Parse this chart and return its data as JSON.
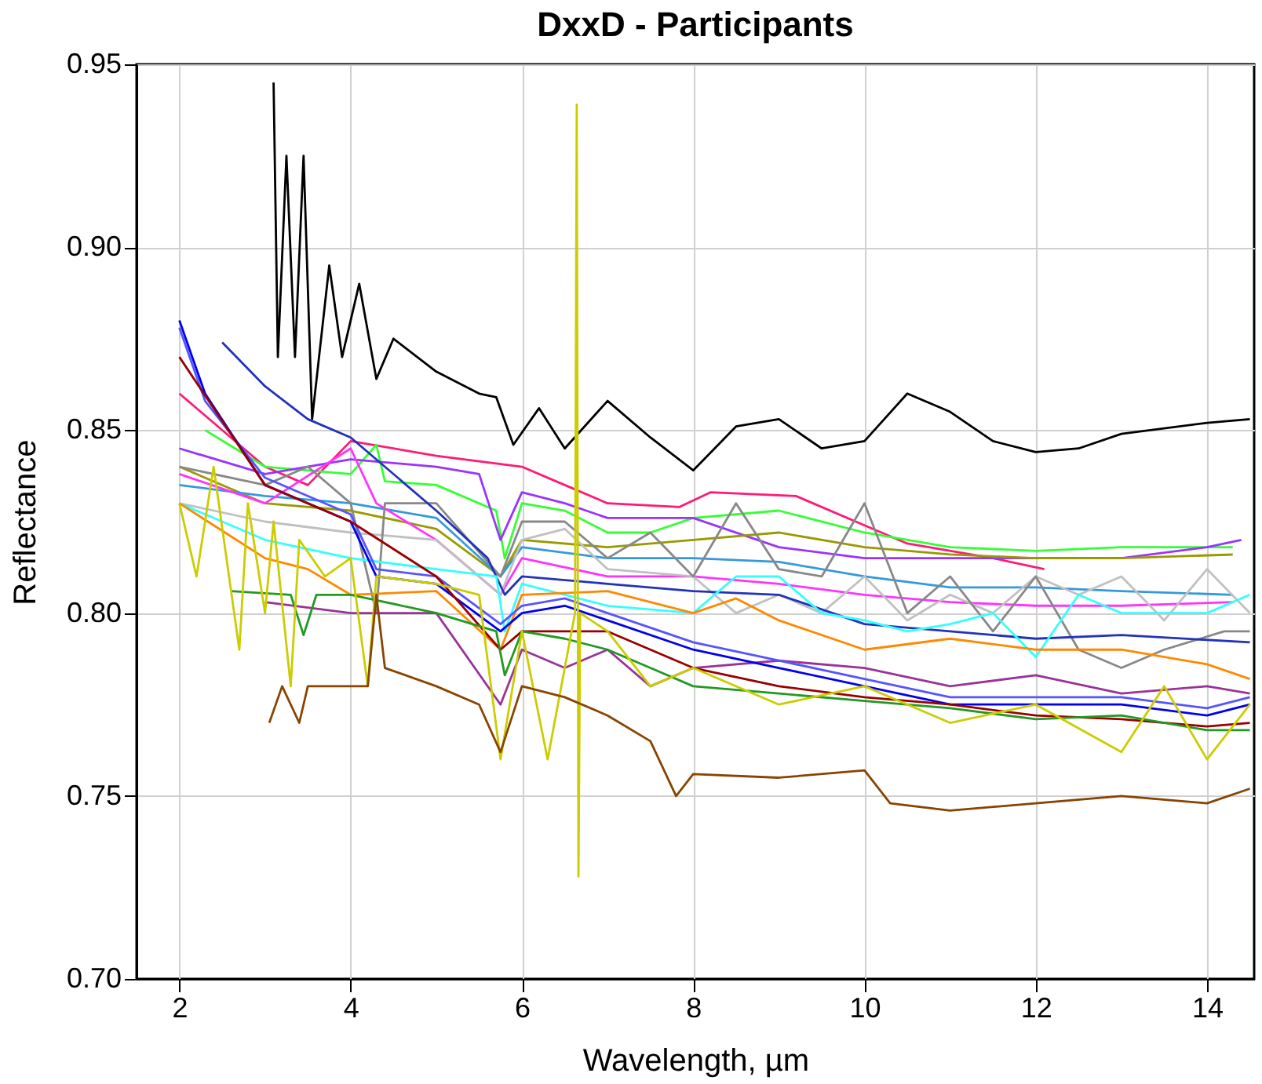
{
  "chart_data": {
    "type": "line",
    "title": "DxxD - Participants",
    "xlabel": "Wavelength, µm",
    "ylabel": "Reflectance",
    "xlim": [
      1.5,
      14.55
    ],
    "ylim": [
      0.7,
      0.95
    ],
    "xticks": [
      2,
      4,
      6,
      8,
      10,
      12,
      14
    ],
    "yticks": [
      {
        "value": 0.7,
        "label": "0.70"
      },
      0.75,
      {
        "value": 0.8,
        "label": "0.80"
      },
      0.85,
      {
        "value": 0.9,
        "label": "0.90"
      },
      0.95
    ],
    "grid": true,
    "legend": false,
    "line_style": "solid",
    "marker": "none",
    "series": [
      {
        "color": "#000000",
        "x": [
          3.1,
          3.15,
          3.25,
          3.35,
          3.45,
          3.55,
          3.75,
          3.9,
          4.1,
          4.3,
          4.5,
          5.0,
          5.5,
          5.7,
          5.9,
          6.2,
          6.5,
          7.0,
          7.5,
          8.0,
          8.5,
          9.0,
          9.5,
          10.0,
          10.5,
          11.0,
          11.5,
          12.0,
          12.5,
          13.0,
          14.0,
          14.5
        ],
        "values": [
          0.945,
          0.87,
          0.925,
          0.87,
          0.925,
          0.853,
          0.895,
          0.87,
          0.89,
          0.864,
          0.875,
          0.866,
          0.86,
          0.859,
          0.846,
          0.856,
          0.845,
          0.858,
          0.848,
          0.839,
          0.851,
          0.853,
          0.845,
          0.847,
          0.86,
          0.855,
          0.847,
          0.844,
          0.845,
          0.849,
          0.852,
          0.853
        ]
      },
      {
        "color": "#ff1a75",
        "x": [
          2.0,
          3.0,
          3.5,
          4.0,
          5.0,
          6.0,
          6.5,
          7.0,
          7.84,
          8.2,
          9.2,
          10.0,
          10.5,
          11.5,
          12.1
        ],
        "values": [
          0.86,
          0.84,
          0.835,
          0.847,
          0.843,
          0.84,
          0.835,
          0.83,
          0.829,
          0.833,
          0.832,
          0.824,
          0.819,
          0.815,
          0.812
        ]
      },
      {
        "color": "#33ff33",
        "x": [
          2.3,
          3.0,
          4.0,
          4.3,
          4.4,
          5.0,
          5.7,
          5.8,
          6.0,
          6.5,
          7.0,
          7.5,
          8.0,
          9.0,
          10.0,
          11.0,
          12.0,
          13.0,
          14.3
        ],
        "values": [
          0.85,
          0.84,
          0.838,
          0.846,
          0.836,
          0.835,
          0.828,
          0.815,
          0.83,
          0.828,
          0.822,
          0.822,
          0.826,
          0.828,
          0.822,
          0.818,
          0.817,
          0.818,
          0.818
        ]
      },
      {
        "color": "#9933ff",
        "x": [
          2.0,
          3.0,
          4.0,
          5.0,
          5.5,
          5.75,
          6.0,
          6.5,
          7.0,
          8.0,
          9.0,
          10.0,
          11.0,
          12.0,
          13.0,
          14.0,
          14.4
        ],
        "values": [
          0.845,
          0.838,
          0.842,
          0.84,
          0.838,
          0.82,
          0.833,
          0.83,
          0.826,
          0.826,
          0.818,
          0.815,
          0.815,
          0.815,
          0.815,
          0.818,
          0.82
        ]
      },
      {
        "color": "#999900",
        "x": [
          2.0,
          3.0,
          4.0,
          5.0,
          5.75,
          6.0,
          7.0,
          8.0,
          9.0,
          10.0,
          11.0,
          12.0,
          13.0,
          14.3
        ],
        "values": [
          0.84,
          0.83,
          0.828,
          0.823,
          0.81,
          0.82,
          0.818,
          0.82,
          0.822,
          0.818,
          0.816,
          0.815,
          0.815,
          0.816
        ]
      },
      {
        "color": "#3399dd",
        "x": [
          2.0,
          3.0,
          4.0,
          5.0,
          5.75,
          6.0,
          7.0,
          8.0,
          9.0,
          10.0,
          11.0,
          12.0,
          13.0,
          14.3
        ],
        "values": [
          0.835,
          0.832,
          0.83,
          0.826,
          0.81,
          0.818,
          0.815,
          0.815,
          0.814,
          0.81,
          0.807,
          0.807,
          0.806,
          0.805
        ]
      },
      {
        "color": "#ff33ff",
        "x": [
          2.0,
          3.0,
          4.0,
          4.3,
          5.0,
          5.75,
          6.0,
          7.0,
          8.0,
          9.0,
          10.0,
          11.0,
          12.0,
          13.0,
          14.3
        ],
        "values": [
          0.838,
          0.83,
          0.845,
          0.83,
          0.82,
          0.805,
          0.815,
          0.81,
          0.81,
          0.808,
          0.805,
          0.803,
          0.802,
          0.802,
          0.803
        ]
      },
      {
        "color": "#c0c0c0",
        "x": [
          2.0,
          3.0,
          4.0,
          5.0,
          5.75,
          6.0,
          6.5,
          7.0,
          8.0,
          8.5,
          9.0,
          9.5,
          10.0,
          10.5,
          11.0,
          11.5,
          12.0,
          12.5,
          13.0,
          13.5,
          14.0,
          14.5
        ],
        "values": [
          0.83,
          0.825,
          0.822,
          0.82,
          0.805,
          0.82,
          0.823,
          0.812,
          0.81,
          0.8,
          0.805,
          0.8,
          0.81,
          0.798,
          0.805,
          0.8,
          0.81,
          0.805,
          0.81,
          0.798,
          0.812,
          0.8
        ]
      },
      {
        "color": "#888888",
        "x": [
          2.0,
          3.0,
          3.5,
          4.0,
          4.3,
          4.4,
          5.0,
          5.75,
          6.0,
          6.5,
          7.0,
          7.5,
          8.0,
          8.5,
          9.0,
          9.5,
          10.0,
          10.5,
          11.0,
          11.5,
          12.0,
          12.5,
          13.0,
          13.5,
          14.2,
          14.5
        ],
        "values": [
          0.84,
          0.835,
          0.84,
          0.83,
          0.8,
          0.83,
          0.83,
          0.81,
          0.825,
          0.825,
          0.815,
          0.822,
          0.81,
          0.83,
          0.812,
          0.81,
          0.83,
          0.8,
          0.81,
          0.795,
          0.81,
          0.79,
          0.785,
          0.79,
          0.795,
          0.795
        ]
      },
      {
        "color": "#2233bb",
        "x": [
          2.5,
          3.0,
          3.5,
          4.0,
          5.0,
          5.6,
          5.8,
          6.0,
          7.0,
          8.0,
          9.0,
          10.0,
          11.0,
          12.0,
          13.0,
          14.5
        ],
        "values": [
          0.874,
          0.862,
          0.853,
          0.848,
          0.828,
          0.815,
          0.805,
          0.81,
          0.808,
          0.806,
          0.805,
          0.797,
          0.795,
          0.793,
          0.794,
          0.792
        ]
      },
      {
        "color": "#33ffff",
        "x": [
          2.0,
          3.0,
          4.0,
          5.0,
          5.7,
          5.8,
          6.0,
          7.0,
          8.0,
          8.5,
          9.0,
          9.5,
          10.0,
          10.5,
          11.0,
          11.5,
          12.0,
          12.5,
          13.0,
          14.0,
          14.5
        ],
        "values": [
          0.83,
          0.82,
          0.815,
          0.812,
          0.81,
          0.795,
          0.808,
          0.802,
          0.8,
          0.81,
          0.81,
          0.8,
          0.798,
          0.795,
          0.797,
          0.8,
          0.788,
          0.805,
          0.8,
          0.8,
          0.805
        ]
      },
      {
        "color": "#ff8800",
        "x": [
          2.0,
          3.0,
          3.5,
          4.0,
          5.0,
          5.75,
          6.0,
          7.0,
          8.0,
          8.5,
          9.0,
          10.0,
          11.0,
          12.0,
          13.0,
          14.0,
          14.5
        ],
        "values": [
          0.83,
          0.815,
          0.812,
          0.805,
          0.806,
          0.79,
          0.805,
          0.806,
          0.8,
          0.804,
          0.798,
          0.79,
          0.793,
          0.79,
          0.79,
          0.786,
          0.782
        ]
      },
      {
        "color": "#993399",
        "x": [
          3.0,
          4.0,
          5.0,
          5.75,
          6.0,
          6.5,
          7.0,
          7.5,
          8.0,
          9.0,
          10.0,
          11.0,
          12.0,
          13.0,
          14.0,
          14.5
        ],
        "values": [
          0.803,
          0.8,
          0.8,
          0.775,
          0.79,
          0.785,
          0.79,
          0.78,
          0.785,
          0.787,
          0.785,
          0.78,
          0.783,
          0.778,
          0.78,
          0.778
        ]
      },
      {
        "color": "#5555ff",
        "x": [
          2.0,
          2.3,
          3.0,
          4.0,
          4.3,
          5.0,
          5.75,
          6.0,
          6.5,
          7.0,
          8.0,
          9.0,
          10.0,
          11.0,
          12.0,
          13.0,
          14.0,
          14.5
        ],
        "values": [
          0.878,
          0.858,
          0.837,
          0.827,
          0.812,
          0.81,
          0.797,
          0.802,
          0.804,
          0.8,
          0.792,
          0.787,
          0.782,
          0.777,
          0.777,
          0.777,
          0.774,
          0.777
        ]
      },
      {
        "color": "#0000ee",
        "x": [
          2.0,
          2.3,
          3.0,
          4.0,
          4.3,
          5.0,
          5.75,
          6.0,
          6.5,
          7.0,
          8.0,
          9.0,
          10.0,
          11.0,
          12.0,
          13.0,
          14.0,
          14.5
        ],
        "values": [
          0.88,
          0.86,
          0.835,
          0.825,
          0.81,
          0.808,
          0.795,
          0.8,
          0.802,
          0.798,
          0.79,
          0.785,
          0.78,
          0.775,
          0.775,
          0.775,
          0.772,
          0.775
        ]
      },
      {
        "color": "#990000",
        "x": [
          2.0,
          3.0,
          4.0,
          5.0,
          5.75,
          6.0,
          7.0,
          8.0,
          9.0,
          10.0,
          11.0,
          12.0,
          13.0,
          14.0,
          14.5
        ],
        "values": [
          0.87,
          0.835,
          0.825,
          0.81,
          0.79,
          0.795,
          0.795,
          0.785,
          0.78,
          0.777,
          0.775,
          0.772,
          0.771,
          0.769,
          0.77
        ]
      },
      {
        "color": "#229922",
        "x": [
          2.6,
          3.3,
          3.45,
          3.6,
          4.0,
          5.0,
          5.7,
          5.8,
          6.0,
          6.5,
          7.0,
          7.5,
          8.0,
          9.0,
          10.0,
          11.0,
          12.0,
          13.0,
          14.0,
          14.5
        ],
        "values": [
          0.806,
          0.805,
          0.794,
          0.805,
          0.805,
          0.8,
          0.795,
          0.783,
          0.795,
          0.793,
          0.79,
          0.785,
          0.78,
          0.778,
          0.776,
          0.774,
          0.771,
          0.772,
          0.768,
          0.768
        ]
      },
      {
        "color": "#cccc00",
        "x": [
          2.0,
          2.2,
          2.4,
          2.7,
          2.8,
          3.0,
          3.1,
          3.3,
          3.4,
          3.7,
          4.0,
          4.2,
          4.3,
          5.0,
          5.5,
          5.75,
          6.0,
          6.3,
          6.62,
          6.64,
          6.66,
          6.68,
          7.0,
          7.5,
          8.0,
          9.0,
          10.0,
          11.0,
          12.0,
          13.0,
          13.5,
          14.0,
          14.5
        ],
        "values": [
          0.83,
          0.81,
          0.84,
          0.79,
          0.83,
          0.8,
          0.825,
          0.78,
          0.82,
          0.81,
          0.815,
          0.78,
          0.81,
          0.808,
          0.805,
          0.76,
          0.795,
          0.76,
          0.8,
          0.939,
          0.728,
          0.8,
          0.795,
          0.78,
          0.785,
          0.775,
          0.78,
          0.77,
          0.775,
          0.762,
          0.78,
          0.76,
          0.775
        ]
      },
      {
        "color": "#884400",
        "x": [
          3.05,
          3.2,
          3.4,
          3.5,
          4.0,
          4.2,
          4.3,
          4.4,
          5.0,
          5.5,
          5.75,
          6.0,
          6.5,
          7.0,
          7.5,
          7.8,
          8.0,
          9.0,
          10.0,
          10.3,
          11.0,
          12.0,
          13.0,
          14.0,
          14.5
        ],
        "values": [
          0.77,
          0.78,
          0.77,
          0.78,
          0.78,
          0.78,
          0.805,
          0.785,
          0.78,
          0.775,
          0.762,
          0.78,
          0.777,
          0.772,
          0.765,
          0.75,
          0.756,
          0.755,
          0.757,
          0.748,
          0.746,
          0.748,
          0.75,
          0.748,
          0.752
        ]
      }
    ]
  }
}
